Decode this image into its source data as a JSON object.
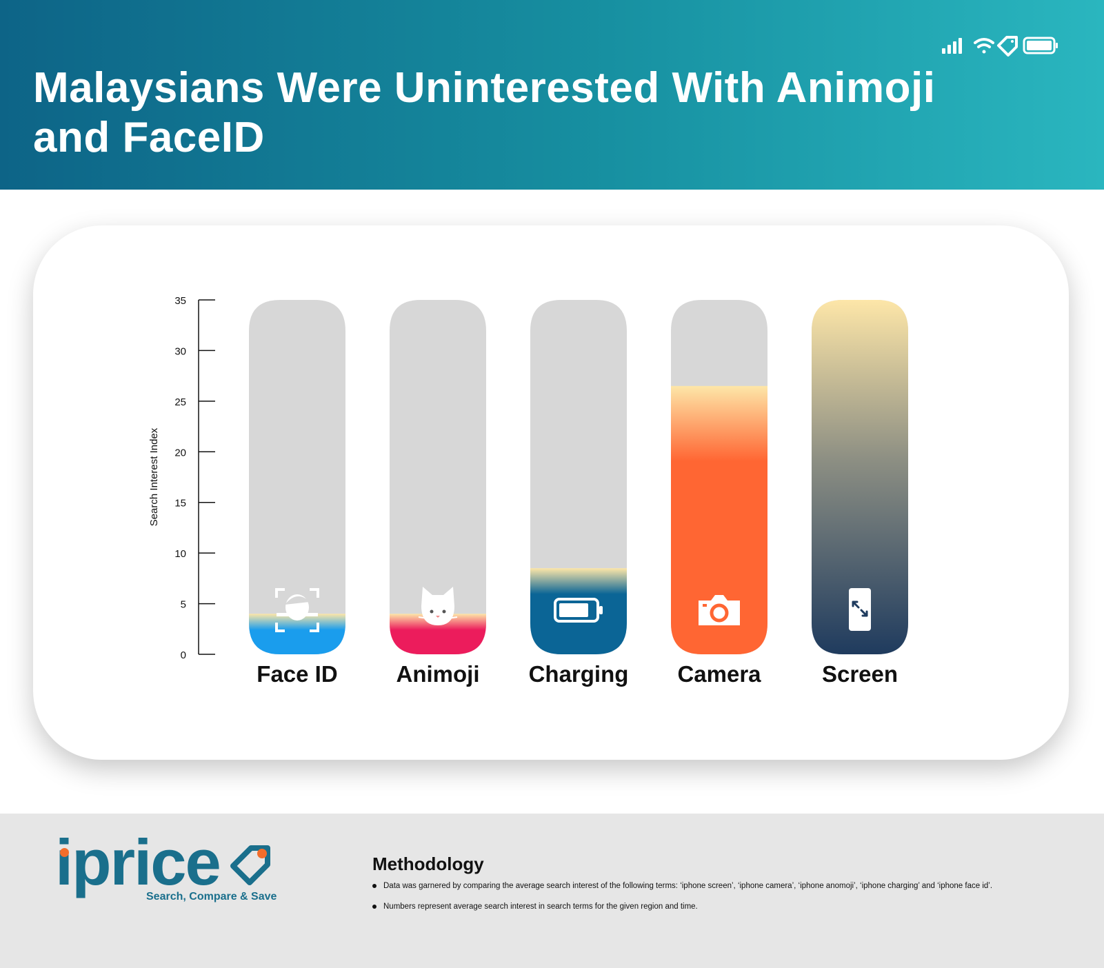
{
  "title": "Malaysians Were Uninterested With Animoji and FaceID",
  "status_icons": [
    "signal-icon",
    "wifi-icon",
    "tag-icon",
    "battery-icon"
  ],
  "chart_data": {
    "type": "bar",
    "title": "Malaysians Were Uninterested With Animoji and FaceID",
    "xlabel": "",
    "ylabel": "Search Interest Index",
    "ylim": [
      0,
      35
    ],
    "yticks": [
      0,
      5,
      10,
      15,
      20,
      25,
      30,
      35
    ],
    "grid": false,
    "categories": [
      "Face ID",
      "Animoji",
      "Charging",
      "Camera",
      "Screen"
    ],
    "values": [
      4,
      4,
      8.5,
      26.5,
      35
    ],
    "icons": [
      "face-scan-icon",
      "cat-icon",
      "battery-icon",
      "camera-icon",
      "phone-expand-icon"
    ],
    "colors": [
      "#1a9ded",
      "#ec1c5c",
      "#0b6596",
      "#ff6633",
      "#1f3b5e"
    ]
  },
  "footer": {
    "logo_text": "iprice",
    "tagline": "Search, Compare & Save",
    "methodology_title": "Methodology",
    "methodology_items": [
      "Data was garnered by comparing the average search interest of the following terms: ‘iphone screen’, ‘iphone camera’, ‘iphone anomoji’, ‘iphone charging’ and ‘iphone face id’.",
      "Numbers represent average search interest in search terms for the given region and time."
    ]
  }
}
